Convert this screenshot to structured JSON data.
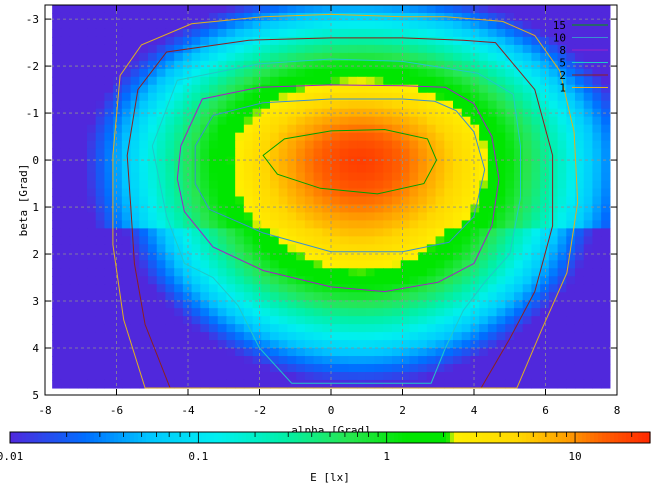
{
  "chart_data": {
    "type": "heatmap",
    "title": "",
    "xlabel": "alpha [Grad]",
    "ylabel": "beta [Grad]",
    "xlim": [
      -8,
      8
    ],
    "ylim": [
      -3.3,
      5
    ],
    "y_inverted": true,
    "x_ticks": [
      -8,
      -6,
      -4,
      -2,
      0,
      2,
      4,
      6,
      8
    ],
    "x_tick_labels": [
      "-8",
      "-6",
      "-4",
      "-2",
      "0",
      "2",
      "4",
      "6",
      "8"
    ],
    "y_ticks": [
      -3,
      -2,
      -1,
      0,
      1,
      2,
      3,
      4,
      5
    ],
    "y_tick_labels": [
      "-3",
      "-2",
      "-1",
      "0",
      "1",
      "2",
      "3",
      "4",
      "5"
    ],
    "grid": true,
    "data_extent": {
      "x": [
        -7.8,
        7.8
      ],
      "y": [
        -3.3,
        4.85
      ]
    },
    "peak": {
      "x": 0.8,
      "y": 0.0,
      "value": 20
    },
    "legend": {
      "placement": "top-right",
      "entries": [
        {
          "name": "15",
          "color": "#00a000"
        },
        {
          "name": "10",
          "color": "#3a8fd0"
        },
        {
          "name": "8",
          "color": "#a020c8"
        },
        {
          "name": "5",
          "color": "#20c8c8"
        },
        {
          "name": "2",
          "color": "#8b2020"
        },
        {
          "name": "1",
          "color": "#e0b020"
        }
      ]
    },
    "contours": [
      {
        "level": 15,
        "points": [
          [
            -1.9,
            -0.1
          ],
          [
            -1.3,
            -0.45
          ],
          [
            0,
            -0.62
          ],
          [
            1.5,
            -0.65
          ],
          [
            2.7,
            -0.45
          ],
          [
            2.95,
            0
          ],
          [
            2.6,
            0.5
          ],
          [
            1.3,
            0.72
          ],
          [
            -0.3,
            0.6
          ],
          [
            -1.5,
            0.3
          ]
        ]
      },
      {
        "level": 10,
        "points": [
          [
            -3.8,
            -0.3
          ],
          [
            -3.3,
            -0.95
          ],
          [
            -1.9,
            -1.22
          ],
          [
            0,
            -1.3
          ],
          [
            2,
            -1.3
          ],
          [
            2.9,
            -1.25
          ],
          [
            3.5,
            -1.05
          ],
          [
            4.0,
            -0.6
          ],
          [
            4.3,
            0.2
          ],
          [
            4.0,
            1.2
          ],
          [
            3.3,
            1.75
          ],
          [
            2,
            1.95
          ],
          [
            0,
            1.95
          ],
          [
            -1.9,
            1.55
          ],
          [
            -3.4,
            1.05
          ],
          [
            -3.8,
            0.5
          ]
        ]
      },
      {
        "level": 8,
        "points": [
          [
            -4.2,
            -0.3
          ],
          [
            -3.6,
            -1.3
          ],
          [
            -2.0,
            -1.55
          ],
          [
            0,
            -1.6
          ],
          [
            2,
            -1.58
          ],
          [
            3.2,
            -1.55
          ],
          [
            4.0,
            -1.2
          ],
          [
            4.5,
            -0.5
          ],
          [
            4.7,
            0.4
          ],
          [
            4.5,
            1.4
          ],
          [
            4.0,
            2.2
          ],
          [
            3.0,
            2.6
          ],
          [
            1.5,
            2.8
          ],
          [
            0,
            2.7
          ],
          [
            -1.9,
            2.35
          ],
          [
            -3.3,
            1.85
          ],
          [
            -4.1,
            1.1
          ],
          [
            -4.3,
            0.4
          ]
        ]
      },
      {
        "level": 5,
        "points": [
          [
            -5.0,
            -0.3
          ],
          [
            -4.3,
            -1.7
          ],
          [
            -2.0,
            -2.05
          ],
          [
            0,
            -2.15
          ],
          [
            2,
            -2.1
          ],
          [
            4.1,
            -1.85
          ],
          [
            5.1,
            -1.4
          ],
          [
            5.3,
            -0.3
          ],
          [
            5.3,
            0.8
          ],
          [
            5.0,
            2.0
          ],
          [
            4.3,
            2.6
          ],
          [
            3.7,
            3.2
          ],
          [
            3.2,
            4.0
          ],
          [
            2.8,
            4.75
          ],
          [
            -1.1,
            4.75
          ],
          [
            -2.0,
            4.0
          ],
          [
            -2.6,
            3.1
          ],
          [
            -3.3,
            2.5
          ],
          [
            -4.1,
            2.2
          ],
          [
            -4.6,
            1.2
          ]
        ]
      },
      {
        "level": 2,
        "points": [
          [
            -5.7,
            -0.1
          ],
          [
            -5.4,
            -1.5
          ],
          [
            -4.6,
            -2.3
          ],
          [
            -2.3,
            -2.55
          ],
          [
            0,
            -2.6
          ],
          [
            2,
            -2.6
          ],
          [
            3.7,
            -2.55
          ],
          [
            4.6,
            -2.5
          ],
          [
            5.7,
            -1.5
          ],
          [
            6.2,
            -0.1
          ],
          [
            6.2,
            1.4
          ],
          [
            5.7,
            2.8
          ],
          [
            5.0,
            3.8
          ],
          [
            4.2,
            4.85
          ],
          [
            -4.5,
            4.85
          ],
          [
            -5.2,
            3.5
          ],
          [
            -5.5,
            2.2
          ],
          [
            -5.6,
            1.0
          ]
        ]
      },
      {
        "level": 1,
        "points": [
          [
            -6.1,
            -0.1
          ],
          [
            -5.9,
            -1.8
          ],
          [
            -5.3,
            -2.45
          ],
          [
            -3.9,
            -2.9
          ],
          [
            -1.9,
            -3.05
          ],
          [
            0,
            -3.1
          ],
          [
            2,
            -3.05
          ],
          [
            3.2,
            -3.05
          ],
          [
            4.8,
            -2.95
          ],
          [
            5.7,
            -2.65
          ],
          [
            6.4,
            -1.9
          ],
          [
            6.8,
            -0.6
          ],
          [
            6.9,
            0.9
          ],
          [
            6.6,
            2.4
          ],
          [
            5.9,
            3.6
          ],
          [
            5.2,
            4.85
          ],
          [
            -5.2,
            4.85
          ],
          [
            -5.8,
            3.4
          ],
          [
            -6.1,
            1.8
          ]
        ]
      }
    ],
    "colorbar": {
      "label": "E [lx]",
      "scale": "log",
      "range": [
        0.01,
        25
      ],
      "tick_labels": [
        "0.01",
        "0.1",
        "1",
        "10"
      ],
      "tick_values": [
        0.01,
        0.1,
        1,
        10
      ]
    }
  }
}
